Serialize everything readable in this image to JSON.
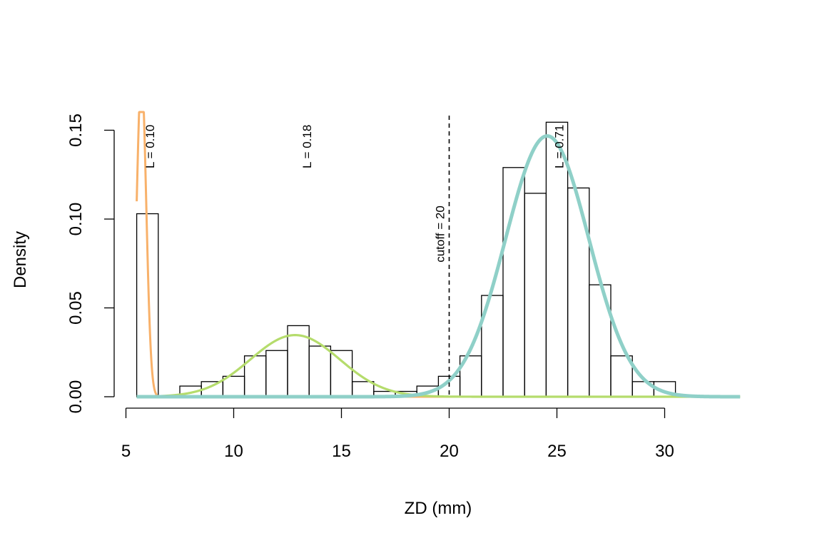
{
  "chart_data": {
    "type": "histogram",
    "title": "",
    "xlabel": "ZD (mm)",
    "ylabel": "Density",
    "xlim": [
      5,
      33.5
    ],
    "ylim": [
      0,
      0.16
    ],
    "x_ticks": [
      5,
      10,
      15,
      20,
      25,
      30
    ],
    "x_tick_labels": [
      "5",
      "10",
      "15",
      "20",
      "25",
      "30"
    ],
    "y_ticks": [
      0,
      0.05,
      0.1,
      0.15
    ],
    "y_tick_labels": [
      "0.00",
      "0.05",
      "0.10",
      "0.15"
    ],
    "bin_width": 1,
    "bins": [
      {
        "x0": 5.5,
        "x1": 6.5,
        "density": 0.103
      },
      {
        "x0": 7.5,
        "x1": 8.5,
        "density": 0.006
      },
      {
        "x0": 8.5,
        "x1": 9.5,
        "density": 0.0085
      },
      {
        "x0": 9.5,
        "x1": 10.5,
        "density": 0.0115
      },
      {
        "x0": 10.5,
        "x1": 11.5,
        "density": 0.023
      },
      {
        "x0": 11.5,
        "x1": 12.5,
        "density": 0.026
      },
      {
        "x0": 12.5,
        "x1": 13.5,
        "density": 0.04
      },
      {
        "x0": 13.5,
        "x1": 14.5,
        "density": 0.0285
      },
      {
        "x0": 14.5,
        "x1": 15.5,
        "density": 0.026
      },
      {
        "x0": 15.5,
        "x1": 16.5,
        "density": 0.0085
      },
      {
        "x0": 16.5,
        "x1": 17.5,
        "density": 0.003
      },
      {
        "x0": 17.5,
        "x1": 18.5,
        "density": 0.003
      },
      {
        "x0": 18.5,
        "x1": 19.5,
        "density": 0.006
      },
      {
        "x0": 19.5,
        "x1": 20.5,
        "density": 0.0115
      },
      {
        "x0": 20.5,
        "x1": 21.5,
        "density": 0.023
      },
      {
        "x0": 21.5,
        "x1": 22.5,
        "density": 0.057
      },
      {
        "x0": 22.5,
        "x1": 23.5,
        "density": 0.129
      },
      {
        "x0": 23.5,
        "x1": 24.5,
        "density": 0.1145
      },
      {
        "x0": 24.5,
        "x1": 25.5,
        "density": 0.1545
      },
      {
        "x0": 25.5,
        "x1": 26.5,
        "density": 0.1175
      },
      {
        "x0": 26.5,
        "x1": 27.5,
        "density": 0.063
      },
      {
        "x0": 27.5,
        "x1": 28.5,
        "density": 0.023
      },
      {
        "x0": 28.5,
        "x1": 29.5,
        "density": 0.0085
      },
      {
        "x0": 29.5,
        "x1": 30.5,
        "density": 0.0085
      }
    ],
    "components": [
      {
        "label": "L = 0.10",
        "lambda": 0.1,
        "mean": 5.72,
        "sd": 0.22,
        "color": "#f8b16a",
        "label_x": 6.3
      },
      {
        "label": "L = 0.18",
        "lambda": 0.18,
        "mean": 12.85,
        "sd": 2.07,
        "color": "#b5dc6c",
        "label_x": 13.6
      },
      {
        "label": "L = 0.71",
        "lambda": 0.71,
        "mean": 24.55,
        "sd": 1.93,
        "color": "#8fd0c8",
        "label_x": 25.3
      }
    ],
    "curve_range": [
      5.5,
      33.5
    ],
    "cutoff": {
      "x": 20,
      "label": "cutoff = 20"
    },
    "grid": false,
    "legend": "none"
  }
}
